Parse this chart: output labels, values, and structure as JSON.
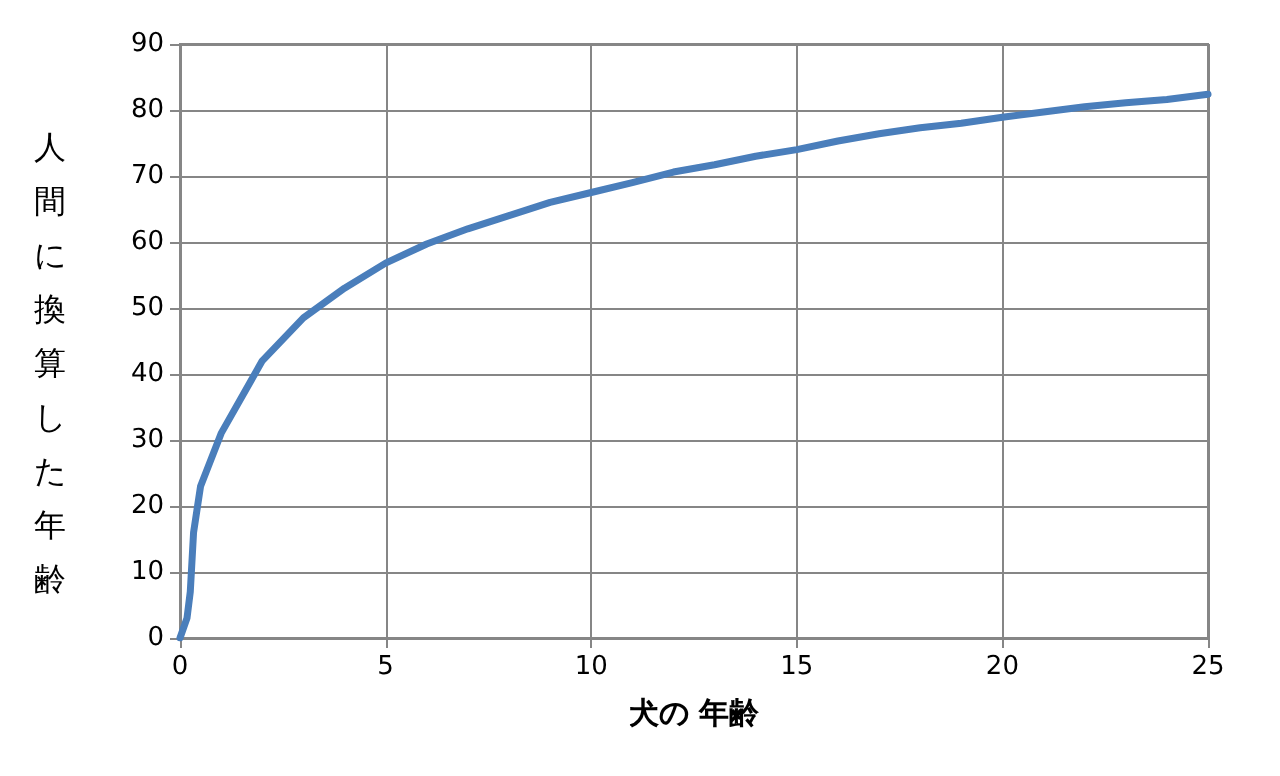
{
  "chart_data": {
    "type": "line",
    "xlabel": "犬の 年齢",
    "ylabel": "人間に換算した年齢",
    "x": [
      0,
      0.17,
      0.25,
      0.33,
      0.5,
      1,
      2,
      3,
      4,
      5,
      6,
      7,
      8,
      9,
      10,
      11,
      12,
      13,
      14,
      15,
      16,
      17,
      18,
      19,
      20,
      21,
      22,
      23,
      24,
      25
    ],
    "series": [
      {
        "color": "#4a7ebb",
        "values": [
          0,
          3,
          7,
          16,
          23,
          31,
          42,
          48.5,
          53,
          56.8,
          59.7,
          62,
          64,
          66,
          67.5,
          69,
          70.6,
          71.7,
          73,
          74,
          75.3,
          76.4,
          77.3,
          78,
          78.9,
          79.7,
          80.5,
          81.1,
          81.6,
          82.4
        ]
      }
    ],
    "xlim": [
      0,
      25
    ],
    "xticks": [
      0,
      5,
      10,
      15,
      20,
      25
    ],
    "ylim": [
      0,
      90
    ],
    "yticks": [
      0,
      10,
      20,
      30,
      40,
      50,
      60,
      70,
      80,
      90
    ],
    "grid": true,
    "marker": "none",
    "line_style": "solid"
  }
}
